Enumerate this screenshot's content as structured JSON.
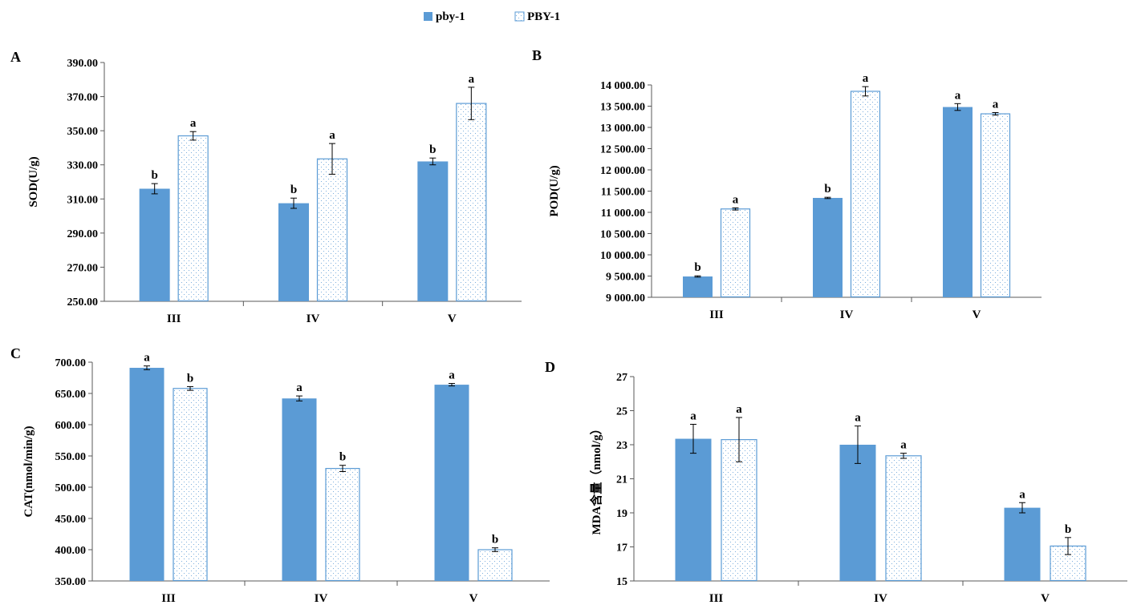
{
  "colors": {
    "solid": "#5B9BD5",
    "hatch_stroke": "#5B9BD5",
    "hatch_dot": "#5B9BD5",
    "axis": "#595959",
    "error": "#000000"
  },
  "legend": {
    "position": "top-center",
    "items": [
      {
        "label": "pby-1",
        "style": "solid"
      },
      {
        "label": "PBY-1",
        "style": "dotted"
      }
    ]
  },
  "chart_data": [
    {
      "panel": "A",
      "type": "bar",
      "ylabel": "SOD(U/g)",
      "ylim": [
        250,
        390
      ],
      "yticks": [
        "250.00",
        "270.00",
        "290.00",
        "310.00",
        "330.00",
        "350.00",
        "370.00",
        "390.00"
      ],
      "categories": [
        "III",
        "IV",
        "V"
      ],
      "series": [
        {
          "name": "pby-1",
          "values": [
            316,
            307.5,
            332
          ],
          "errors": [
            3,
            3,
            2
          ],
          "letters": [
            "b",
            "b",
            "b"
          ]
        },
        {
          "name": "PBY-1",
          "values": [
            347,
            333.5,
            366
          ],
          "errors": [
            2.5,
            9,
            9.5
          ],
          "letters": [
            "a",
            "a",
            "a"
          ]
        }
      ]
    },
    {
      "panel": "B",
      "type": "bar",
      "ylabel": "POD(U/g)",
      "ylim": [
        9000,
        14000
      ],
      "yticks": [
        "9 000.00",
        "9 500.00",
        "10 000.00",
        "10 500.00",
        "11 000.00",
        "11 500.00",
        "12 000.00",
        "12 500.00",
        "13 000.00",
        "13 500.00",
        "14 000.00"
      ],
      "categories": [
        "III",
        "IV",
        "V"
      ],
      "series": [
        {
          "name": "pby-1",
          "values": [
            9490,
            11340,
            13480
          ],
          "errors": [
            15,
            15,
            80
          ],
          "letters": [
            "b",
            "b",
            "a"
          ]
        },
        {
          "name": "PBY-1",
          "values": [
            11080,
            13850,
            13320
          ],
          "errors": [
            25,
            110,
            30
          ],
          "letters": [
            "a",
            "a",
            "a"
          ]
        }
      ]
    },
    {
      "panel": "C",
      "type": "bar",
      "ylabel": "CAT(nmol/min/g)",
      "ylim": [
        350,
        700
      ],
      "yticks": [
        "350.00",
        "400.00",
        "450.00",
        "500.00",
        "550.00",
        "600.00",
        "650.00",
        "700.00"
      ],
      "categories": [
        "III",
        "IV",
        "V"
      ],
      "series": [
        {
          "name": "pby-1",
          "values": [
            691,
            642,
            664
          ],
          "errors": [
            3,
            4,
            2
          ],
          "letters": [
            "a",
            "a",
            "a"
          ]
        },
        {
          "name": "PBY-1",
          "values": [
            658,
            530,
            400
          ],
          "errors": [
            3,
            5,
            3
          ],
          "letters": [
            "b",
            "b",
            "b"
          ]
        }
      ]
    },
    {
      "panel": "D",
      "type": "bar",
      "ylabel": "MDA含量（nmol/g）",
      "ylim": [
        15,
        27
      ],
      "yticks": [
        "15",
        "17",
        "19",
        "21",
        "23",
        "25",
        "27"
      ],
      "categories": [
        "III",
        "IV",
        "V"
      ],
      "series": [
        {
          "name": "pby-1",
          "values": [
            23.35,
            23.0,
            19.3
          ],
          "errors": [
            0.85,
            1.1,
            0.3
          ],
          "letters": [
            "a",
            "a",
            "a"
          ]
        },
        {
          "name": "PBY-1",
          "values": [
            23.3,
            22.35,
            17.05
          ],
          "errors": [
            1.3,
            0.15,
            0.5
          ],
          "letters": [
            "a",
            "a",
            "b"
          ]
        }
      ]
    }
  ]
}
